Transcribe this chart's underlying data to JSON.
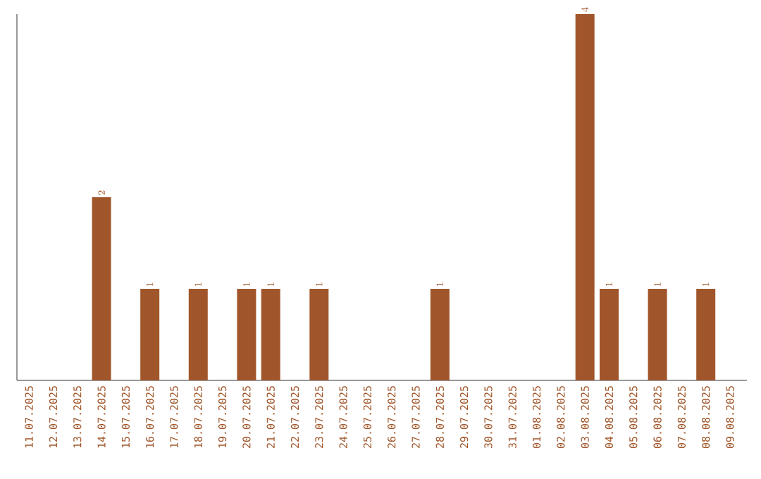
{
  "chart_data": {
    "type": "bar",
    "categories": [
      "11.07.2025",
      "12.07.2025",
      "13.07.2025",
      "14.07.2025",
      "15.07.2025",
      "16.07.2025",
      "17.07.2025",
      "18.07.2025",
      "19.07.2025",
      "20.07.2025",
      "21.07.2025",
      "22.07.2025",
      "23.07.2025",
      "24.07.2025",
      "25.07.2025",
      "26.07.2025",
      "27.07.2025",
      "28.07.2025",
      "29.07.2025",
      "30.07.2025",
      "31.07.2025",
      "01.08.2025",
      "02.08.2025",
      "03.08.2025",
      "04.08.2025",
      "05.08.2025",
      "06.08.2025",
      "07.08.2025",
      "08.08.2025",
      "09.08.2025"
    ],
    "values": [
      null,
      null,
      null,
      2,
      null,
      1,
      null,
      1,
      null,
      1,
      1,
      null,
      1,
      null,
      null,
      null,
      null,
      1,
      null,
      null,
      null,
      null,
      null,
      4,
      1,
      null,
      1,
      null,
      1,
      null
    ],
    "color": "#a0562a",
    "data_labels": true
  }
}
